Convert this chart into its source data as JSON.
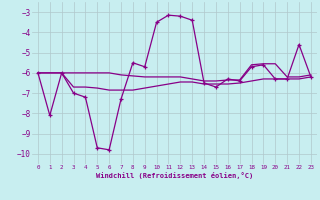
{
  "xlabel": "Windchill (Refroidissement éolien,°C)",
  "bg_color": "#c8eef0",
  "grid_color": "#b0c8cc",
  "line_color": "#880088",
  "xlim": [
    -0.5,
    23.5
  ],
  "ylim": [
    -10.5,
    -2.5
  ],
  "yticks": [
    -10,
    -9,
    -8,
    -7,
    -6,
    -5,
    -4,
    -3
  ],
  "xticks": [
    0,
    1,
    2,
    3,
    4,
    5,
    6,
    7,
    8,
    9,
    10,
    11,
    12,
    13,
    14,
    15,
    16,
    17,
    18,
    19,
    20,
    21,
    22,
    23
  ],
  "line1_x": [
    0,
    1,
    2,
    3,
    4,
    5,
    6,
    7,
    8,
    9,
    10,
    11,
    12,
    13,
    14,
    15,
    16,
    17,
    18,
    19,
    20,
    21,
    22,
    23
  ],
  "line1_y": [
    -6.0,
    -8.1,
    -6.0,
    -7.0,
    -7.2,
    -9.7,
    -9.8,
    -7.3,
    -5.5,
    -5.7,
    -3.5,
    -3.15,
    -3.2,
    -3.4,
    -6.5,
    -6.7,
    -6.3,
    -6.4,
    -5.7,
    -5.6,
    -6.3,
    -6.3,
    -4.6,
    -6.2
  ],
  "line2_x": [
    0,
    1,
    2,
    3,
    4,
    5,
    6,
    7,
    8,
    9,
    10,
    11,
    12,
    13,
    14,
    15,
    16,
    17,
    18,
    19,
    20,
    21,
    22,
    23
  ],
  "line2_y": [
    -6.0,
    -6.0,
    -6.0,
    -6.0,
    -6.0,
    -6.0,
    -6.0,
    -6.1,
    -6.15,
    -6.2,
    -6.2,
    -6.2,
    -6.2,
    -6.3,
    -6.4,
    -6.4,
    -6.35,
    -6.35,
    -5.6,
    -5.55,
    -5.55,
    -6.2,
    -6.2,
    -6.1
  ],
  "line3_x": [
    0,
    1,
    2,
    3,
    4,
    5,
    6,
    7,
    8,
    9,
    10,
    11,
    12,
    13,
    14,
    15,
    16,
    17,
    18,
    19,
    20,
    21,
    22,
    23
  ],
  "line3_y": [
    -6.0,
    -6.0,
    -6.0,
    -6.7,
    -6.7,
    -6.75,
    -6.85,
    -6.85,
    -6.85,
    -6.75,
    -6.65,
    -6.55,
    -6.45,
    -6.45,
    -6.55,
    -6.55,
    -6.55,
    -6.5,
    -6.4,
    -6.3,
    -6.3,
    -6.3,
    -6.3,
    -6.2
  ]
}
